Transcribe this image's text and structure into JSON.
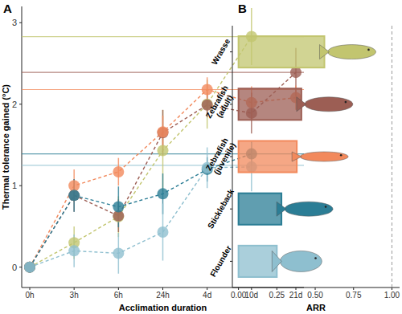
{
  "chart_data": [
    {
      "type": "line",
      "panel": "A",
      "x_label": "Acclimation duration",
      "y_label": "Thermal tolerance gained (°C)",
      "categories": [
        "0h",
        "3h",
        "6h",
        "24h",
        "4d",
        "10d",
        "21d"
      ],
      "ylim": [
        -0.25,
        3.2
      ],
      "yticks": [
        0,
        1,
        2,
        3
      ],
      "marker": "circle",
      "line_style": "dashed",
      "series": [
        {
          "color": "#c2c56f",
          "values": [
            0,
            0.3,
            0.62,
            1.43,
            2.0,
            2.83,
            null
          ],
          "errors": [
            0,
            0.2,
            0.25,
            0.5,
            0.3,
            0.35,
            null
          ],
          "reference": 2.83
        },
        {
          "color": "#9c5e54",
          "values": [
            0,
            0.88,
            0.63,
            1.65,
            1.99,
            1.89,
            2.39
          ],
          "errors": [
            0,
            0.2,
            0.2,
            0.28,
            0.15,
            0.25,
            0.3
          ],
          "reference": 2.39
        },
        {
          "color": "#f2895c",
          "values": [
            0,
            1.0,
            1.17,
            1.66,
            2.18,
            2.02,
            2.08
          ],
          "errors": [
            0,
            0.2,
            0.17,
            0.2,
            0.15,
            0.2,
            0.15
          ],
          "reference": 2.18
        },
        {
          "color": "#2b7d95",
          "values": [
            0,
            0.88,
            0.74,
            0.9,
            1.2,
            1.39,
            null
          ],
          "errors": [
            0,
            0.2,
            0.25,
            0.25,
            0.15,
            0.15,
            null
          ],
          "reference": 1.39
        },
        {
          "color": "#8ebfcf",
          "values": [
            0,
            0.2,
            0.17,
            0.43,
            1.22,
            1.23,
            null
          ],
          "errors": [
            0,
            0.2,
            0.25,
            0.35,
            0.25,
            0.3,
            null
          ],
          "reference": 1.25
        }
      ]
    },
    {
      "type": "bar",
      "panel": "B",
      "orientation": "horizontal",
      "x_label": "ARR",
      "categories": [
        "Wrasse",
        "Zebrafish (adult)",
        "Zebrafish (juvenile)",
        "Stickleback",
        "Flounder"
      ],
      "values": [
        0.56,
        0.41,
        0.38,
        0.28,
        0.25
      ],
      "colors": [
        "#c2c56f",
        "#9c5e54",
        "#f2895c",
        "#2b7d95",
        "#8ebfcf"
      ],
      "xlim": [
        -0.04,
        1.05
      ],
      "xticks": [
        {
          "value": 0,
          "label": "0.00"
        },
        {
          "value": 0.25,
          "label": "0.25"
        },
        {
          "value": 0.5,
          "label": "0.50"
        },
        {
          "value": 0.75,
          "label": "0.75"
        },
        {
          "value": 1,
          "label": "1.00"
        }
      ],
      "reference": 1
    }
  ]
}
